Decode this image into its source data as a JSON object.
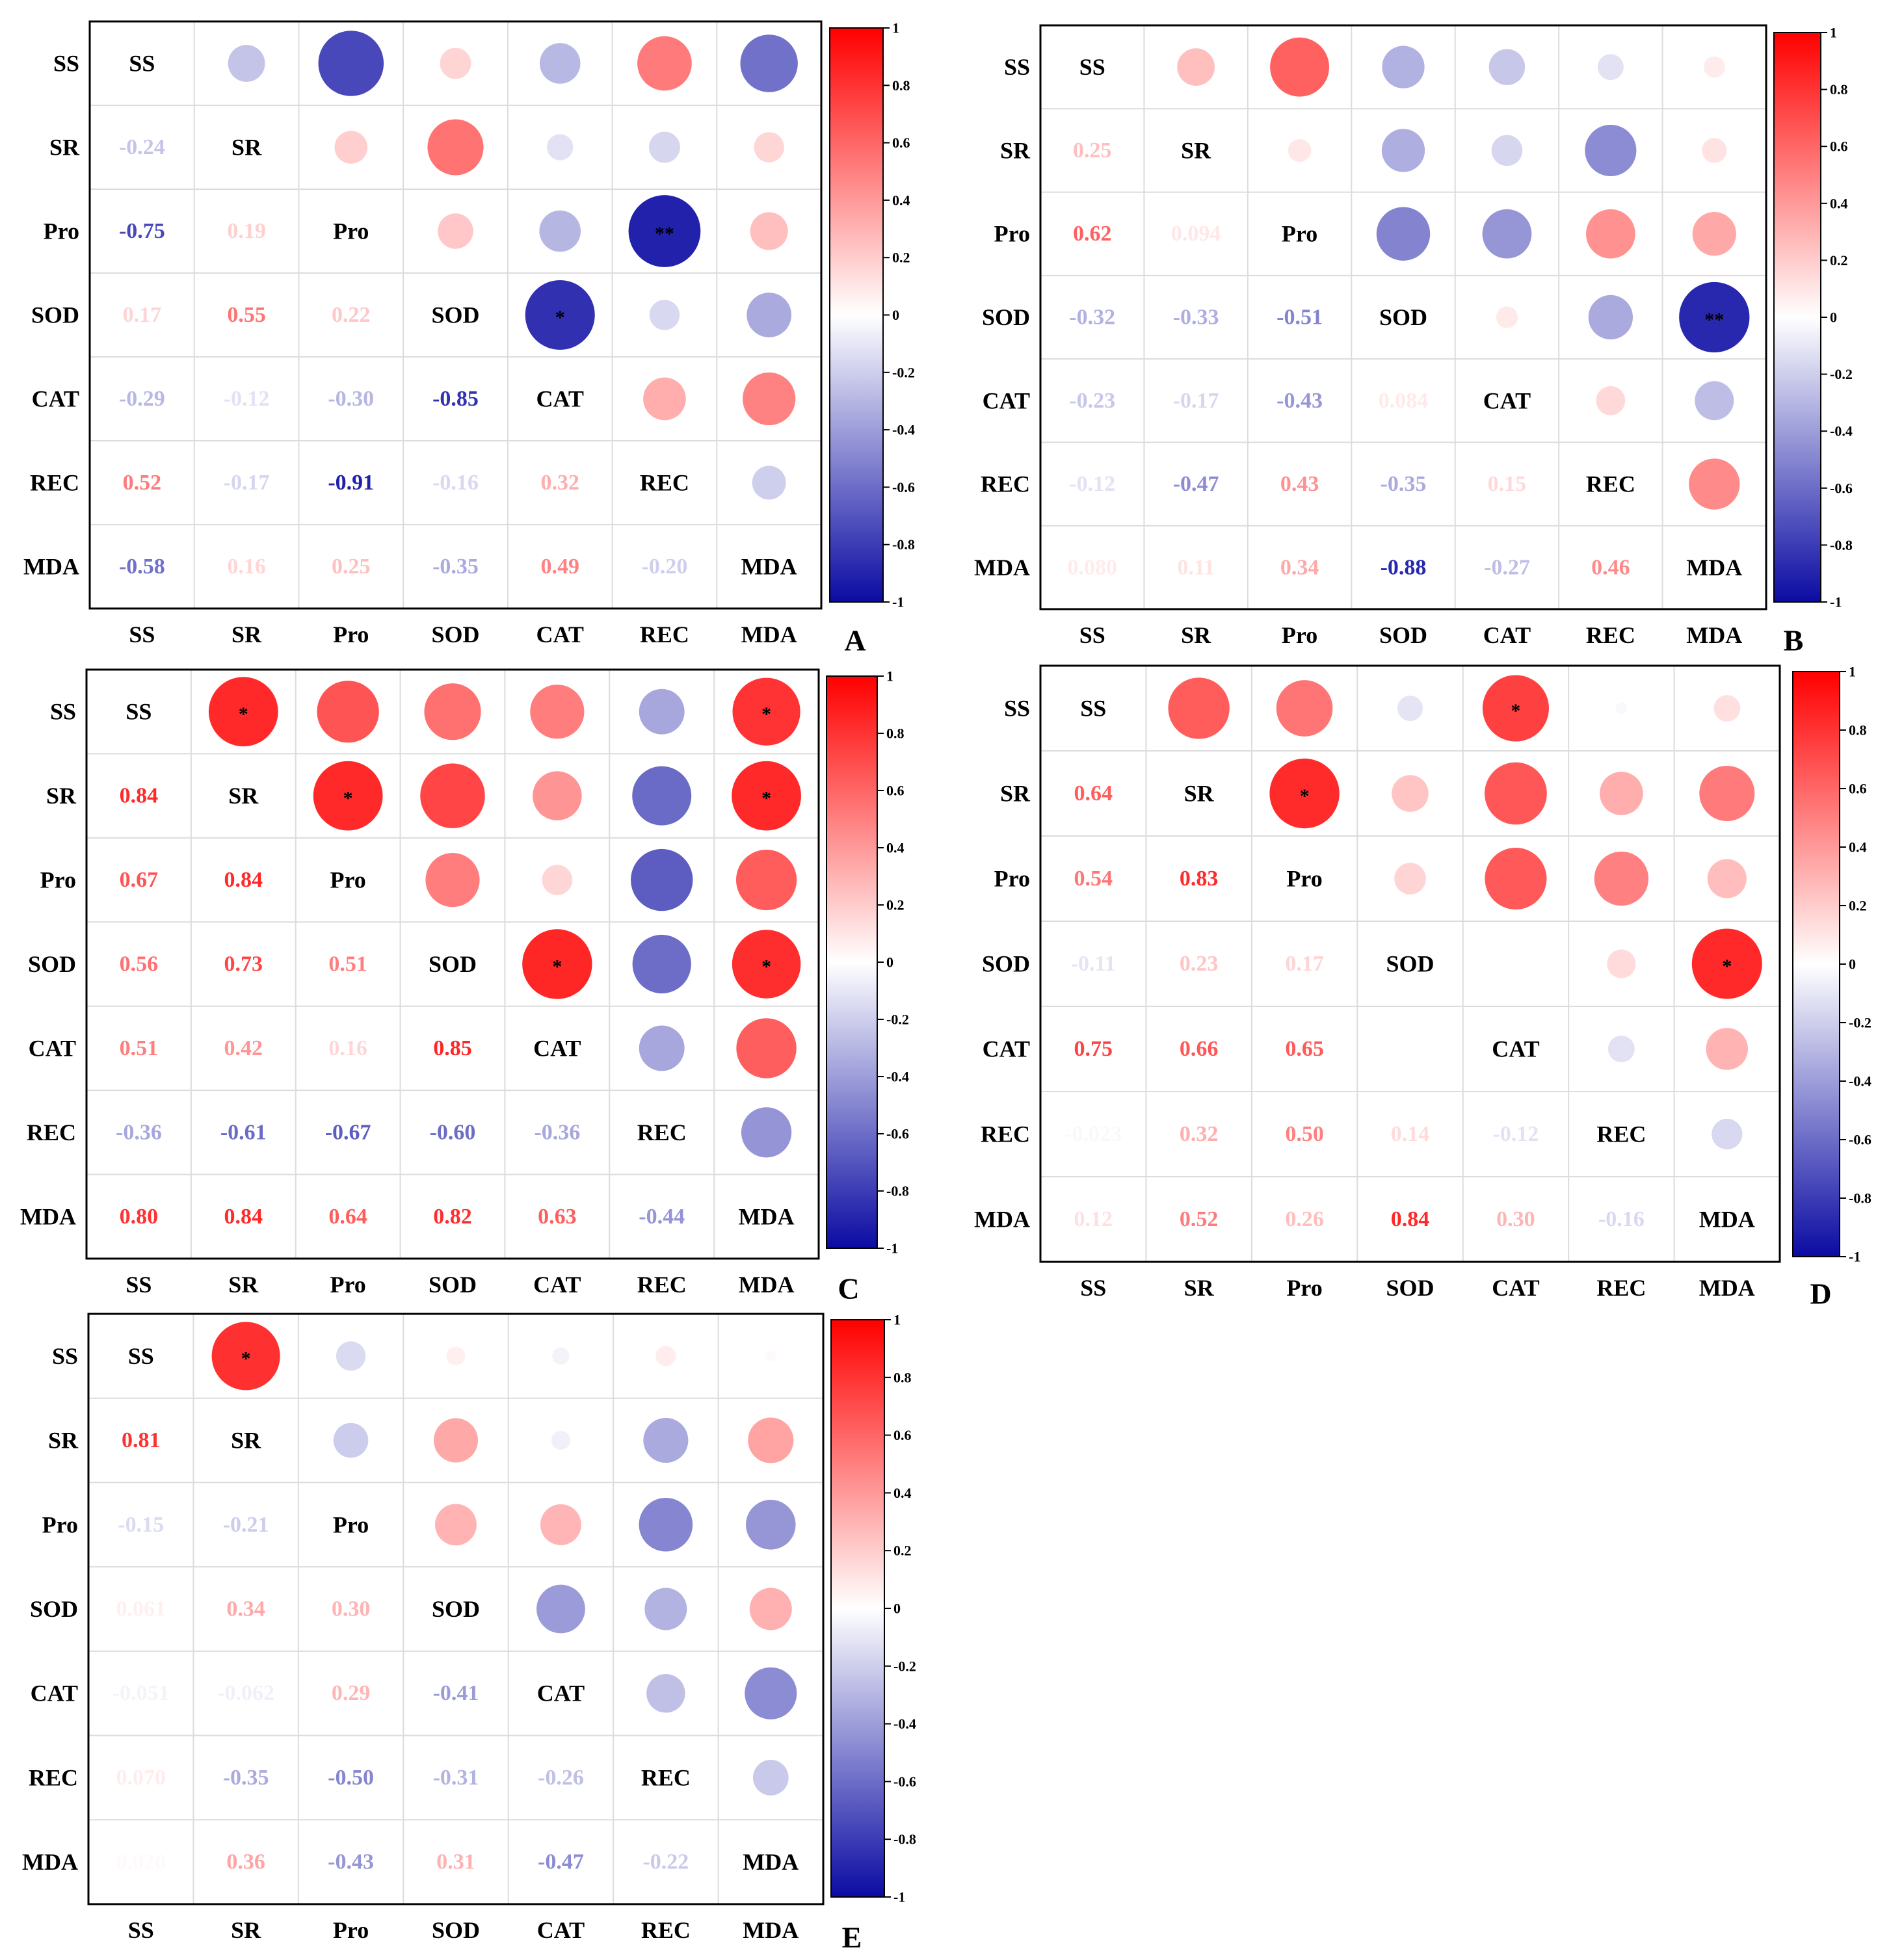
{
  "colors": {
    "negative": "#0b0ba3",
    "zero": "#ffffff",
    "positive": "#ff0000",
    "grid": "#dcdcdc",
    "frame": "#000000",
    "text": "#000000"
  },
  "chart_data": [
    {
      "type": "heatmap",
      "panel_label": "A",
      "variables": [
        "SS",
        "SR",
        "Pro",
        "SOD",
        "CAT",
        "REC",
        "MDA"
      ],
      "matrix": [
        [
          1.0,
          -0.24,
          -0.75,
          0.17,
          -0.29,
          0.52,
          -0.58
        ],
        [
          -0.24,
          1.0,
          0.19,
          0.55,
          -0.12,
          -0.17,
          0.16
        ],
        [
          -0.75,
          0.19,
          1.0,
          0.22,
          -0.3,
          -0.91,
          0.25
        ],
        [
          0.17,
          0.55,
          0.22,
          1.0,
          -0.85,
          -0.16,
          -0.35
        ],
        [
          -0.29,
          -0.12,
          -0.3,
          -0.85,
          1.0,
          0.32,
          0.49
        ],
        [
          0.52,
          -0.17,
          -0.91,
          -0.16,
          0.32,
          1.0,
          -0.2
        ],
        [
          -0.58,
          0.16,
          0.25,
          -0.35,
          0.49,
          -0.2,
          1.0
        ]
      ],
      "labels": [
        [
          "SS",
          "",
          "",
          "",
          "",
          "",
          ""
        ],
        [
          "-0.24",
          "SR",
          "",
          "",
          "",
          "",
          ""
        ],
        [
          "-0.75",
          "0.19",
          "Pro",
          "",
          "",
          "",
          ""
        ],
        [
          "0.17",
          "0.55",
          "0.22",
          "SOD",
          "",
          "",
          ""
        ],
        [
          "-0.29",
          "-0.12",
          "-0.30",
          "-0.85",
          "CAT",
          "",
          ""
        ],
        [
          "0.52",
          "-0.17",
          "-0.91",
          "-0.16",
          "0.32",
          "REC",
          ""
        ],
        [
          "-0.58",
          "0.16",
          "0.25",
          "-0.35",
          "0.49",
          "-0.20",
          "MDA"
        ]
      ],
      "significance": [
        [
          "",
          "",
          "",
          "",
          "",
          "",
          ""
        ],
        [
          "",
          "",
          "",
          "",
          "",
          "",
          ""
        ],
        [
          "",
          "",
          "",
          "",
          "",
          "**",
          ""
        ],
        [
          "",
          "",
          "",
          "",
          "*",
          "",
          ""
        ],
        [
          "",
          "",
          "",
          "",
          "",
          "",
          ""
        ],
        [
          "",
          "",
          "",
          "",
          "",
          "",
          ""
        ],
        [
          "",
          "",
          "",
          "",
          "",
          "",
          ""
        ]
      ],
      "colorbar": {
        "range": [
          -1,
          1
        ],
        "ticks": [
          "1",
          "0.8",
          "0.6",
          "0.4",
          "0.2",
          "0",
          "-0.2",
          "-0.4",
          "-0.6",
          "-0.8",
          "-1"
        ]
      }
    },
    {
      "type": "heatmap",
      "panel_label": "B",
      "variables": [
        "SS",
        "SR",
        "Pro",
        "SOD",
        "CAT",
        "REC",
        "MDA"
      ],
      "matrix": [
        [
          1.0,
          0.25,
          0.62,
          -0.32,
          -0.23,
          -0.12,
          0.08
        ],
        [
          0.25,
          1.0,
          0.094,
          -0.33,
          -0.17,
          -0.47,
          0.11
        ],
        [
          0.62,
          0.094,
          1.0,
          -0.51,
          -0.43,
          0.43,
          0.34
        ],
        [
          -0.32,
          -0.33,
          -0.51,
          1.0,
          0.084,
          -0.35,
          -0.88
        ],
        [
          -0.23,
          -0.17,
          -0.43,
          0.084,
          1.0,
          0.15,
          -0.27
        ],
        [
          -0.12,
          -0.47,
          0.43,
          -0.35,
          0.15,
          1.0,
          0.46
        ],
        [
          0.08,
          0.11,
          0.34,
          -0.88,
          -0.27,
          0.46,
          1.0
        ]
      ],
      "labels": [
        [
          "SS",
          "",
          "",
          "",
          "",
          "",
          ""
        ],
        [
          "0.25",
          "SR",
          "",
          "",
          "",
          "",
          ""
        ],
        [
          "0.62",
          "0.094",
          "Pro",
          "",
          "",
          "",
          ""
        ],
        [
          "-0.32",
          "-0.33",
          "-0.51",
          "SOD",
          "",
          "",
          ""
        ],
        [
          "-0.23",
          "-0.17",
          "-0.43",
          "0.084",
          "CAT",
          "",
          ""
        ],
        [
          "-0.12",
          "-0.47",
          "0.43",
          "-0.35",
          "0.15",
          "REC",
          ""
        ],
        [
          "0.080",
          "0.11",
          "0.34",
          "-0.88",
          "-0.27",
          "0.46",
          "MDA"
        ]
      ],
      "significance": [
        [
          "",
          "",
          "",
          "",
          "",
          "",
          ""
        ],
        [
          "",
          "",
          "",
          "",
          "",
          "",
          ""
        ],
        [
          "",
          "",
          "",
          "",
          "",
          "",
          ""
        ],
        [
          "",
          "",
          "",
          "",
          "",
          "",
          "**"
        ],
        [
          "",
          "",
          "",
          "",
          "",
          "",
          ""
        ],
        [
          "",
          "",
          "",
          "",
          "",
          "",
          ""
        ],
        [
          "",
          "",
          "",
          "",
          "",
          "",
          ""
        ]
      ],
      "colorbar": {
        "range": [
          -1,
          1
        ],
        "ticks": [
          "1",
          "0.8",
          "0.6",
          "0.4",
          "0.2",
          "0",
          "-0.2",
          "-0.4",
          "-0.6",
          "-0.8",
          "-1"
        ]
      }
    },
    {
      "type": "heatmap",
      "panel_label": "C",
      "variables": [
        "SS",
        "SR",
        "Pro",
        "SOD",
        "CAT",
        "REC",
        "MDA"
      ],
      "matrix": [
        [
          1.0,
          0.84,
          0.67,
          0.56,
          0.51,
          -0.36,
          0.8
        ],
        [
          0.84,
          1.0,
          0.84,
          0.73,
          0.42,
          -0.61,
          0.84
        ],
        [
          0.67,
          0.84,
          1.0,
          0.51,
          0.16,
          -0.67,
          0.64
        ],
        [
          0.56,
          0.73,
          0.51,
          1.0,
          0.85,
          -0.6,
          0.82
        ],
        [
          0.51,
          0.42,
          0.16,
          0.85,
          1.0,
          -0.36,
          0.63
        ],
        [
          -0.36,
          -0.61,
          -0.67,
          -0.6,
          -0.36,
          1.0,
          -0.44
        ],
        [
          0.8,
          0.84,
          0.64,
          0.82,
          0.63,
          -0.44,
          1.0
        ]
      ],
      "labels": [
        [
          "SS",
          "",
          "",
          "",
          "",
          "",
          ""
        ],
        [
          "0.84",
          "SR",
          "",
          "",
          "",
          "",
          ""
        ],
        [
          "0.67",
          "0.84",
          "Pro",
          "",
          "",
          "",
          ""
        ],
        [
          "0.56",
          "0.73",
          "0.51",
          "SOD",
          "",
          "",
          ""
        ],
        [
          "0.51",
          "0.42",
          "0.16",
          "0.85",
          "CAT",
          "",
          ""
        ],
        [
          "-0.36",
          "-0.61",
          "-0.67",
          "-0.60",
          "-0.36",
          "REC",
          ""
        ],
        [
          "0.80",
          "0.84",
          "0.64",
          "0.82",
          "0.63",
          "-0.44",
          "MDA"
        ]
      ],
      "significance": [
        [
          "",
          "*",
          "",
          "",
          "",
          "",
          "*"
        ],
        [
          "",
          "",
          "*",
          "",
          "",
          "",
          "*"
        ],
        [
          "",
          "",
          "",
          "",
          "",
          "",
          ""
        ],
        [
          "",
          "",
          "",
          "",
          "*",
          "",
          "*"
        ],
        [
          "",
          "",
          "",
          "",
          "",
          "",
          ""
        ],
        [
          "",
          "",
          "",
          "",
          "",
          "",
          ""
        ],
        [
          "",
          "",
          "",
          "",
          "",
          "",
          ""
        ]
      ],
      "colorbar": {
        "range": [
          -1,
          1
        ],
        "ticks": [
          "1",
          "0.8",
          "0.6",
          "0.4",
          "0.2",
          "0",
          "-0.2",
          "-0.4",
          "-0.6",
          "-0.8",
          "-1"
        ]
      }
    },
    {
      "type": "heatmap",
      "panel_label": "D",
      "variables": [
        "SS",
        "SR",
        "Pro",
        "SOD",
        "CAT",
        "REC",
        "MDA"
      ],
      "matrix": [
        [
          1.0,
          0.64,
          0.54,
          -0.11,
          0.75,
          -0.023,
          0.12
        ],
        [
          0.64,
          1.0,
          0.83,
          0.23,
          0.66,
          0.32,
          0.52
        ],
        [
          0.54,
          0.83,
          1.0,
          0.17,
          0.65,
          0.5,
          0.26
        ],
        [
          -0.11,
          0.23,
          0.17,
          1.0,
          0.0,
          0.14,
          0.84
        ],
        [
          0.75,
          0.66,
          0.65,
          0.0,
          1.0,
          -0.12,
          0.3
        ],
        [
          -0.023,
          0.32,
          0.5,
          0.14,
          -0.12,
          1.0,
          -0.16
        ],
        [
          0.12,
          0.52,
          0.26,
          0.84,
          0.3,
          -0.16,
          1.0
        ]
      ],
      "labels": [
        [
          "SS",
          "",
          "",
          "",
          "",
          "",
          ""
        ],
        [
          "0.64",
          "SR",
          "",
          "",
          "",
          "",
          ""
        ],
        [
          "0.54",
          "0.83",
          "Pro",
          "",
          "",
          "",
          ""
        ],
        [
          "-0.11",
          "0.23",
          "0.17",
          "SOD",
          "",
          "",
          ""
        ],
        [
          "0.75",
          "0.66",
          "0.65",
          "",
          "CAT",
          "",
          ""
        ],
        [
          "-0.023",
          "0.32",
          "0.50",
          "0.14",
          "-0.12",
          "REC",
          ""
        ],
        [
          "0.12",
          "0.52",
          "0.26",
          "0.84",
          "0.30",
          "-0.16",
          "MDA"
        ]
      ],
      "significance": [
        [
          "",
          "",
          "",
          "",
          "*",
          "",
          ""
        ],
        [
          "",
          "",
          "*",
          "",
          "",
          "",
          ""
        ],
        [
          "",
          "",
          "",
          "",
          "",
          "",
          ""
        ],
        [
          "",
          "",
          "",
          "",
          "",
          "",
          "*"
        ],
        [
          "",
          "",
          "",
          "",
          "",
          "",
          ""
        ],
        [
          "",
          "",
          "",
          "",
          "",
          "",
          ""
        ],
        [
          "",
          "",
          "",
          "",
          "",
          "",
          ""
        ]
      ],
      "colorbar": {
        "range": [
          -1,
          1
        ],
        "ticks": [
          "1",
          "0.8",
          "0.6",
          "0.4",
          "0.2",
          "0",
          "-0.2",
          "-0.4",
          "-0.6",
          "-0.8",
          "-1"
        ]
      }
    },
    {
      "type": "heatmap",
      "panel_label": "E",
      "variables": [
        "SS",
        "SR",
        "Pro",
        "SOD",
        "CAT",
        "REC",
        "MDA"
      ],
      "matrix": [
        [
          1.0,
          0.81,
          -0.15,
          0.061,
          -0.051,
          0.07,
          0.02
        ],
        [
          0.81,
          1.0,
          -0.21,
          0.34,
          -0.062,
          -0.35,
          0.36
        ],
        [
          -0.15,
          -0.21,
          1.0,
          0.3,
          0.29,
          -0.5,
          -0.43
        ],
        [
          0.061,
          0.34,
          0.3,
          1.0,
          -0.41,
          -0.31,
          0.31
        ],
        [
          -0.051,
          -0.062,
          0.29,
          -0.41,
          1.0,
          -0.26,
          -0.47
        ],
        [
          0.07,
          -0.35,
          -0.5,
          -0.31,
          -0.26,
          1.0,
          -0.22
        ],
        [
          0.02,
          0.36,
          -0.43,
          0.31,
          -0.47,
          -0.22,
          1.0
        ]
      ],
      "labels": [
        [
          "SS",
          "",
          "",
          "",
          "",
          "",
          ""
        ],
        [
          "0.81",
          "SR",
          "",
          "",
          "",
          "",
          ""
        ],
        [
          "-0.15",
          "-0.21",
          "Pro",
          "",
          "",
          "",
          ""
        ],
        [
          "0.061",
          "0.34",
          "0.30",
          "SOD",
          "",
          "",
          ""
        ],
        [
          "-0.051",
          "-0.062",
          "0.29",
          "-0.41",
          "CAT",
          "",
          ""
        ],
        [
          "0.070",
          "-0.35",
          "-0.50",
          "-0.31",
          "-0.26",
          "REC",
          ""
        ],
        [
          "0.020",
          "0.36",
          "-0.43",
          "0.31",
          "-0.47",
          "-0.22",
          "MDA"
        ]
      ],
      "significance": [
        [
          "",
          "*",
          "",
          "",
          "",
          "",
          ""
        ],
        [
          "",
          "",
          "",
          "",
          "",
          "",
          ""
        ],
        [
          "",
          "",
          "",
          "",
          "",
          "",
          ""
        ],
        [
          "",
          "",
          "",
          "",
          "",
          "",
          ""
        ],
        [
          "",
          "",
          "",
          "",
          "",
          "",
          ""
        ],
        [
          "",
          "",
          "",
          "",
          "",
          "",
          ""
        ],
        [
          "",
          "",
          "",
          "",
          "",
          "",
          ""
        ]
      ],
      "colorbar": {
        "range": [
          -1,
          1
        ],
        "ticks": [
          "1",
          "0.8",
          "0.6",
          "0.4",
          "0.2",
          "0",
          "-0.2",
          "-0.4",
          "-0.6",
          "-0.8",
          "-1"
        ]
      }
    }
  ]
}
